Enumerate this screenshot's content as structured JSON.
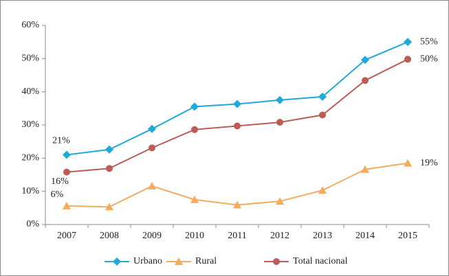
{
  "chart_data": {
    "type": "line",
    "categories": [
      "2007",
      "2008",
      "2009",
      "2010",
      "2011",
      "2012",
      "2013",
      "2014",
      "2015"
    ],
    "series": [
      {
        "name": "Urbano",
        "color": "#1fa9d9",
        "marker": "diamond",
        "values": [
          21,
          22.6,
          28.8,
          35.5,
          36.3,
          37.5,
          38.5,
          49.6,
          55
        ],
        "value_labels": [
          "21%",
          null,
          null,
          null,
          null,
          null,
          null,
          null,
          "55%"
        ]
      },
      {
        "name": "Rural",
        "color": "#f5ab5e",
        "marker": "triangle",
        "values": [
          5.6,
          5.3,
          11.6,
          7.5,
          5.9,
          7,
          10.3,
          16.6,
          18.5
        ],
        "value_labels": [
          "6%",
          null,
          null,
          null,
          null,
          null,
          null,
          null,
          "19%"
        ]
      },
      {
        "name": "Total nacional",
        "color": "#bd5b55",
        "marker": "circle",
        "values": [
          15.8,
          16.9,
          23.1,
          28.6,
          29.7,
          30.8,
          33,
          43.4,
          49.8
        ],
        "value_labels": [
          "16%",
          null,
          null,
          null,
          null,
          null,
          null,
          null,
          "50%"
        ]
      }
    ],
    "ylim": [
      0,
      60
    ],
    "yticks": [
      {
        "value": 0,
        "label": "0%"
      },
      {
        "value": 10,
        "label": "10%"
      },
      {
        "value": 20,
        "label": "20%"
      },
      {
        "value": 30,
        "label": "30%"
      },
      {
        "value": 40,
        "label": "40%"
      },
      {
        "value": 50,
        "label": "50%"
      },
      {
        "value": 60,
        "label": "60%"
      }
    ],
    "grid": false,
    "legend": "bottom"
  }
}
